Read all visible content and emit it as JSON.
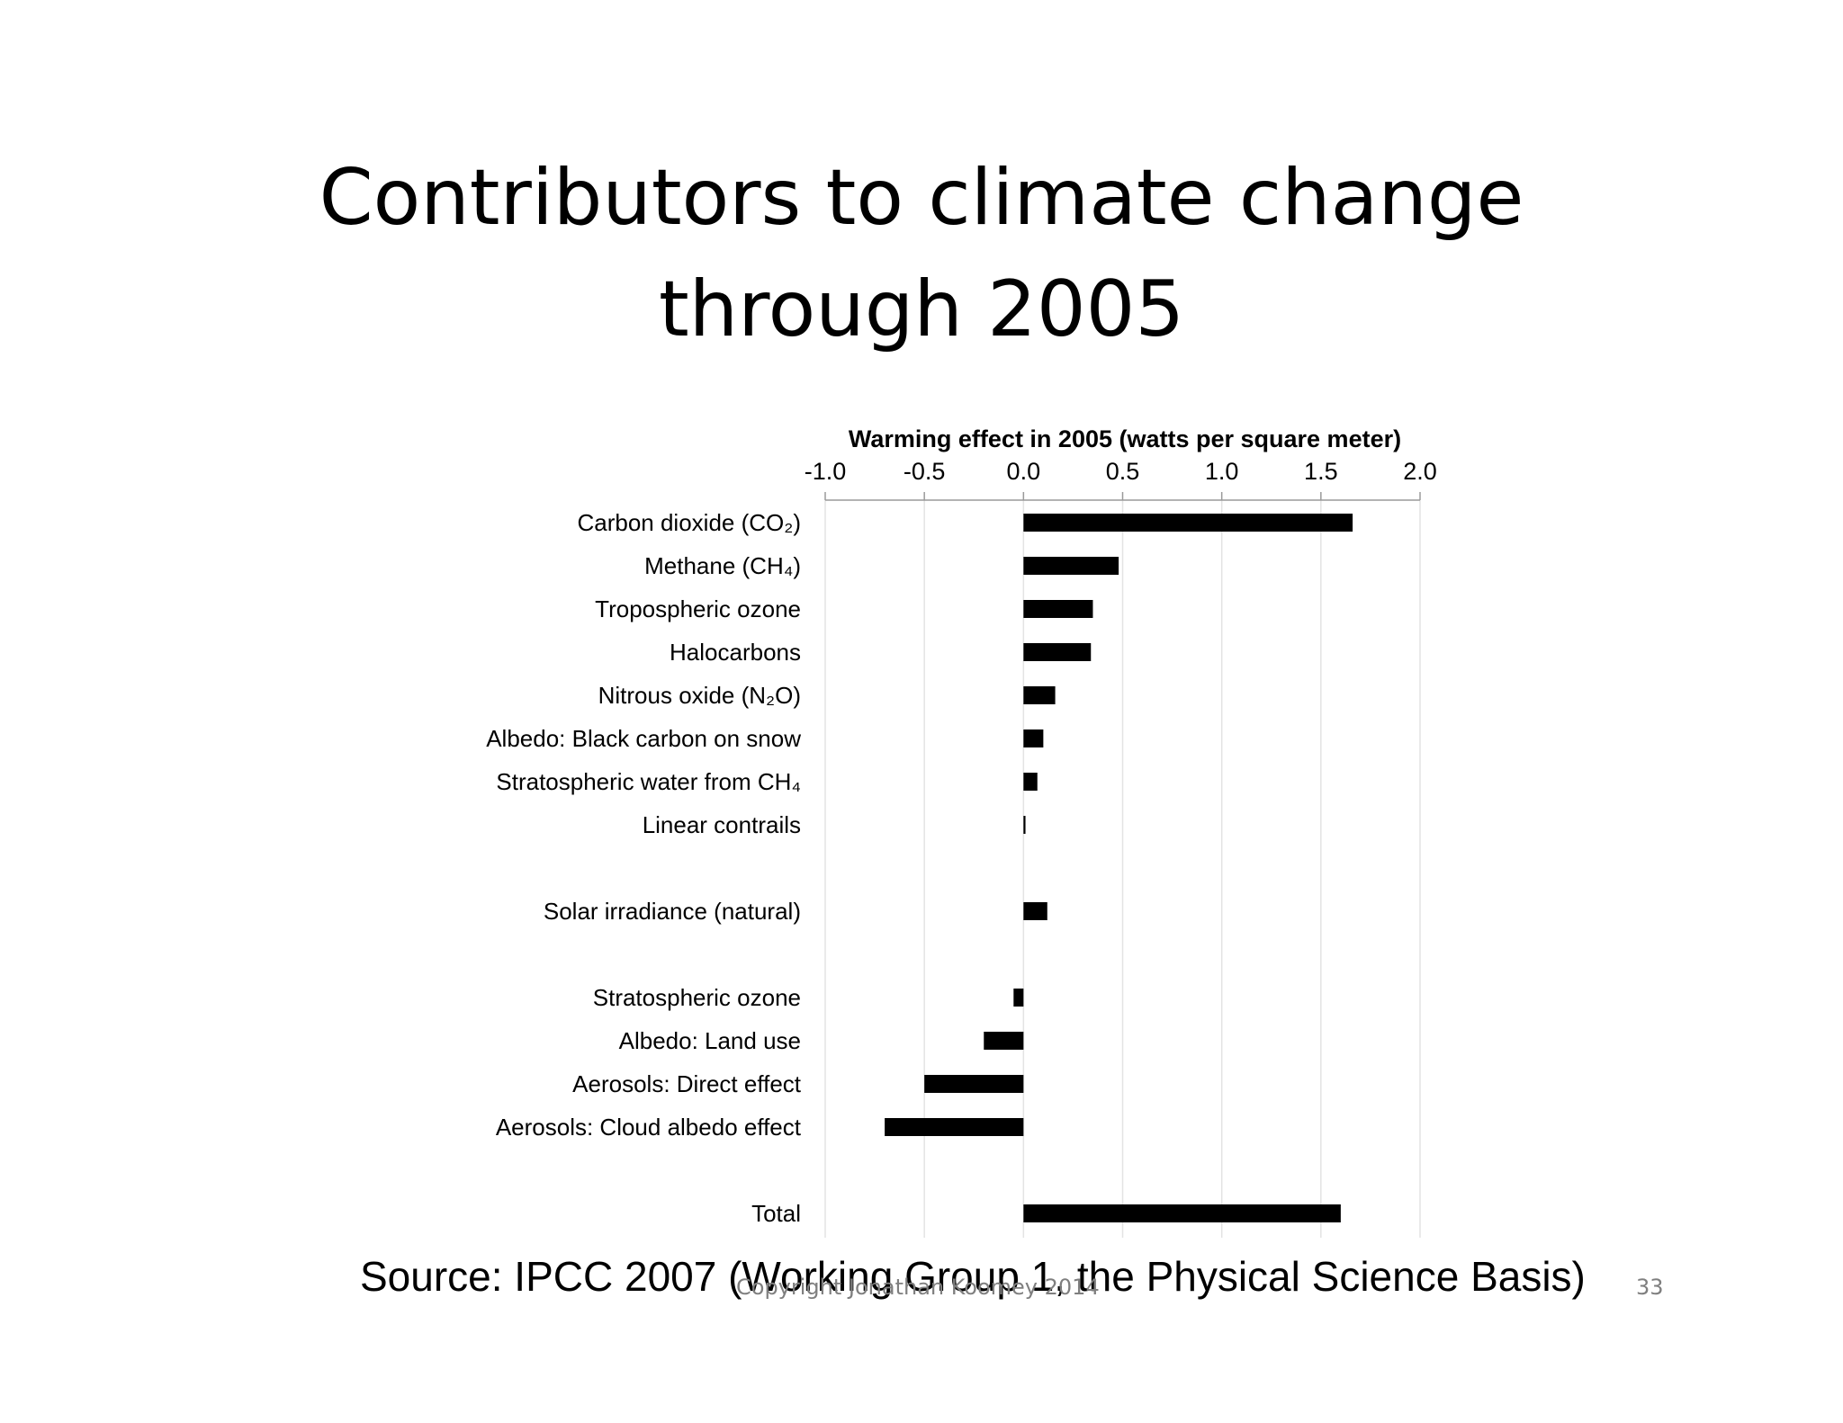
{
  "slide": {
    "title_line1": "Contributors to climate change",
    "title_line2": "through 2005",
    "source": "Source:  IPCC 2007 (Working Group 1, the Physical Science Basis)",
    "copyright": "Copyright Jonathan Koomey 2014",
    "page_number": "33"
  },
  "chart_data": {
    "type": "bar",
    "orientation": "horizontal",
    "title": "Warming effect in 2005 (watts per square meter)",
    "xlim": [
      -1.0,
      2.0
    ],
    "x_ticks": [
      "-1.0",
      "-0.5",
      "0.0",
      "0.5",
      "1.0",
      "1.5",
      "2.0"
    ],
    "grid": true,
    "axis_position": "top",
    "bar_color": "#000000",
    "categories": [
      "Carbon dioxide (CO₂)",
      "Methane (CH₄)",
      "Tropospheric ozone",
      "Halocarbons",
      "Nitrous oxide (N₂O)",
      "Albedo:  Black carbon on snow",
      "Stratospheric water from CH₄",
      "Linear contrails",
      "Solar irradiance (natural)",
      "Stratospheric ozone",
      "Albedo: Land use",
      "Aerosols:  Direct effect",
      "Aerosols:  Cloud albedo effect",
      "Total"
    ],
    "values": [
      1.66,
      0.48,
      0.35,
      0.34,
      0.16,
      0.1,
      0.07,
      0.01,
      0.12,
      -0.05,
      -0.2,
      -0.5,
      -0.7,
      1.6
    ]
  }
}
